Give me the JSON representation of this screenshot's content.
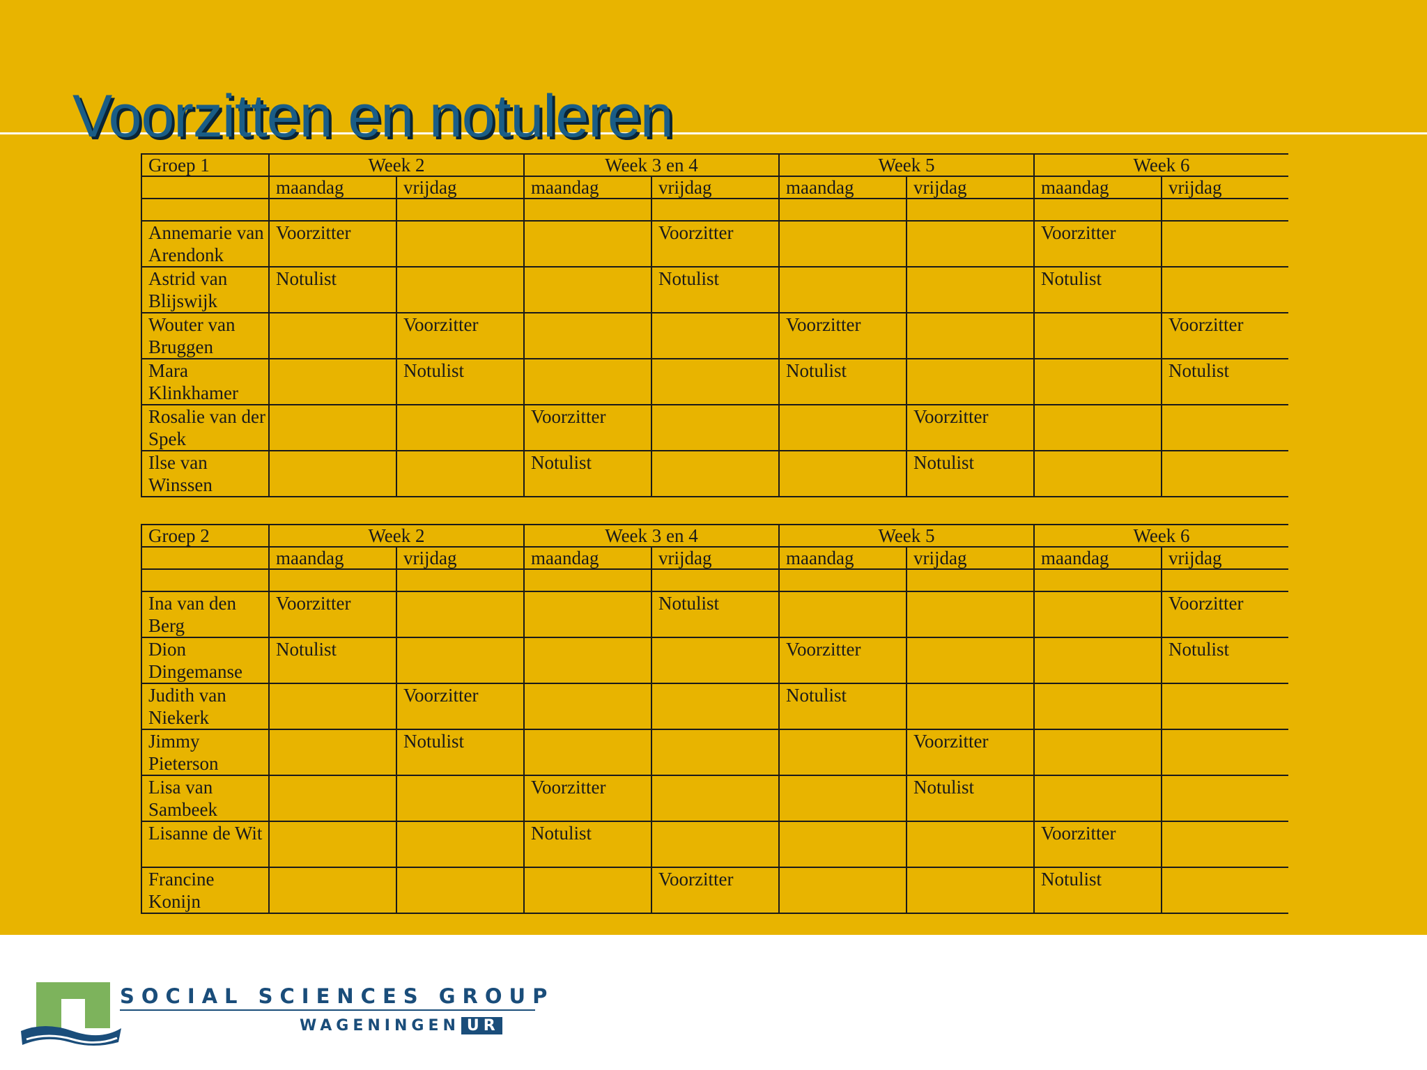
{
  "title": "Voorzitten en notuleren",
  "brand": {
    "line1": "SOCIAL SCIENCES GROUP",
    "line2": "WAGENINGEN",
    "line2_box": "UR"
  },
  "colors": {
    "background": "#e8b400",
    "title": "#1a5d86",
    "brand": "#1a4d7a"
  },
  "groups": [
    {
      "name": "Groep 1",
      "weeks": [
        "Week 2",
        "Week 3 en 4",
        "Week 5",
        "Week 6"
      ],
      "days": [
        "maandag",
        "vrijdag",
        "maandag",
        "vrijdag",
        "maandag",
        "vrijdag",
        "maandag",
        "vrijdag"
      ],
      "members": [
        {
          "name": "Annemarie van Arendonk",
          "cells": [
            "Voorzitter",
            "",
            "",
            "Voorzitter",
            "",
            "",
            "Voorzitter",
            ""
          ]
        },
        {
          "name": "Astrid van Blijswijk",
          "cells": [
            "Notulist",
            "",
            "",
            "Notulist",
            "",
            "",
            "Notulist",
            ""
          ]
        },
        {
          "name": "Wouter van Bruggen",
          "cells": [
            "",
            "Voorzitter",
            "",
            "",
            "Voorzitter",
            "",
            "",
            "Voorzitter"
          ]
        },
        {
          "name": "Mara Klinkhamer",
          "cells": [
            "",
            "Notulist",
            "",
            "",
            "Notulist",
            "",
            "",
            "Notulist"
          ]
        },
        {
          "name": "Rosalie van der Spek",
          "cells": [
            "",
            "",
            "Voorzitter",
            "",
            "",
            "Voorzitter",
            "",
            ""
          ]
        },
        {
          "name": "Ilse van Winssen",
          "cells": [
            "",
            "",
            "Notulist",
            "",
            "",
            "Notulist",
            "",
            ""
          ]
        }
      ]
    },
    {
      "name": "Groep 2",
      "weeks": [
        "Week 2",
        "Week 3 en 4",
        "Week 5",
        "Week 6"
      ],
      "days": [
        "maandag",
        "vrijdag",
        "maandag",
        "vrijdag",
        "maandag",
        "vrijdag",
        "maandag",
        "vrijdag"
      ],
      "members": [
        {
          "name": "Ina van den Berg",
          "cells": [
            "Voorzitter",
            "",
            "",
            "Notulist",
            "",
            "",
            "",
            "Voorzitter"
          ]
        },
        {
          "name": "Dion Dingemanse",
          "cells": [
            "Notulist",
            "",
            "",
            "",
            "Voorzitter",
            "",
            "",
            "Notulist"
          ]
        },
        {
          "name": "Judith van Niekerk",
          "cells": [
            "",
            "Voorzitter",
            "",
            "",
            "Notulist",
            "",
            "",
            ""
          ]
        },
        {
          "name": "Jimmy Pieterson",
          "cells": [
            "",
            "Notulist",
            "",
            "",
            "",
            "Voorzitter",
            "",
            ""
          ]
        },
        {
          "name": "Lisa van Sambeek",
          "cells": [
            "",
            "",
            "Voorzitter",
            "",
            "",
            "Notulist",
            "",
            ""
          ]
        },
        {
          "name": "Lisanne de Wit",
          "cells": [
            "",
            "",
            "Notulist",
            "",
            "",
            "",
            "Voorzitter",
            ""
          ]
        },
        {
          "name": "Francine Konijn",
          "cells": [
            "",
            "",
            "",
            "Voorzitter",
            "",
            "",
            "Notulist",
            ""
          ]
        }
      ]
    }
  ]
}
